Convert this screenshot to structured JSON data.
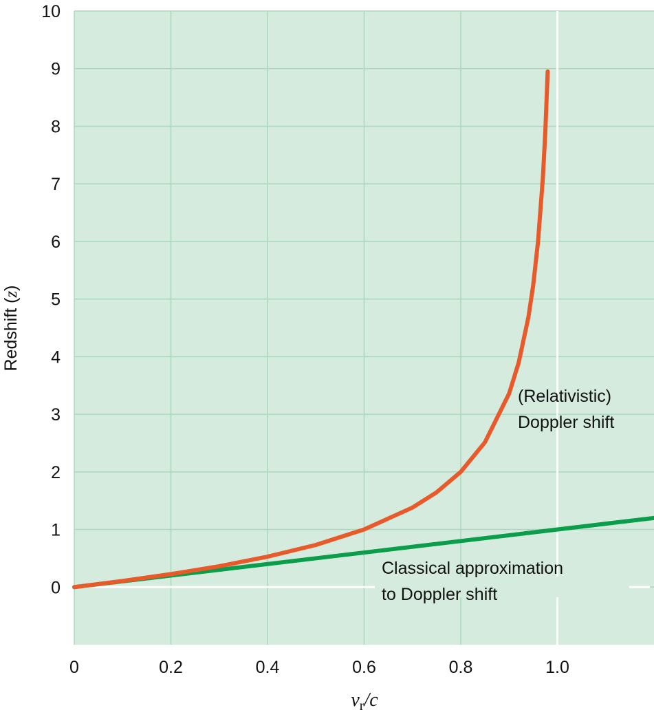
{
  "chart_data": {
    "type": "line",
    "y_label": [
      "Redshift (",
      "z",
      ")"
    ],
    "x_label": [
      "v",
      "r",
      "/c"
    ],
    "xlim": [
      0,
      1.2
    ],
    "xticks": [
      0,
      0.2,
      0.4,
      0.6,
      0.8,
      {
        "value": 1,
        "label": "1.0"
      }
    ],
    "ylim": [
      -1,
      10
    ],
    "yticks": [
      0,
      1,
      2,
      3,
      4,
      5,
      6,
      7,
      8,
      9,
      10
    ],
    "grid": true,
    "background": "#d4ebde",
    "grid_color": "#a9d9bc",
    "reference_lines": {
      "x": [
        1
      ],
      "y": [
        0
      ],
      "color": "#ffffff"
    },
    "series": [
      {
        "color": "#0a9e4a",
        "x": [
          0,
          1.2
        ],
        "values": [
          0,
          1.2
        ]
      },
      {
        "color": "#e85a2a",
        "x": [
          0,
          0.1,
          0.2,
          0.3,
          0.4,
          0.5,
          0.6,
          0.7,
          0.75,
          0.8,
          0.85,
          0.9,
          0.92,
          0.94,
          0.95,
          0.96,
          0.97,
          0.975,
          0.98
        ],
        "values": [
          0,
          0.106,
          0.225,
          0.363,
          0.528,
          0.732,
          1,
          1.38,
          1.646,
          2,
          2.512,
          3.359,
          3.899,
          4.686,
          5.245,
          6,
          7.103,
          7.888,
          8.95
        ]
      }
    ],
    "annotations": [
      [
        "(Relativistic)",
        "Doppler shift"
      ],
      [
        "Classical approximation",
        "to Doppler shift"
      ]
    ]
  }
}
